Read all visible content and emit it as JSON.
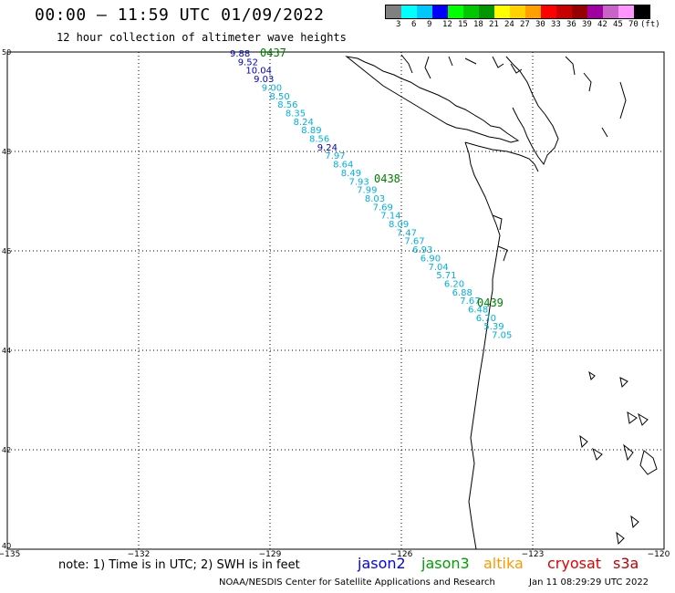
{
  "title": "00:00 – 11:59 UTC 01/09/2022",
  "subtitle": "12 hour collection of altimeter wave heights",
  "colorbar": {
    "colors": [
      "#808080",
      "#00ffff",
      "#00c8ff",
      "#0000ff",
      "#00ff00",
      "#00c800",
      "#009600",
      "#ffff00",
      "#ffd200",
      "#ffa000",
      "#ff0000",
      "#c80000",
      "#960000",
      "#a000a0",
      "#c864c8",
      "#ff96ff",
      "#000000"
    ],
    "labels": [
      "3",
      "6",
      "9",
      "12",
      "15",
      "18",
      "21",
      "24",
      "27",
      "30",
      "33",
      "36",
      "39",
      "42",
      "45",
      "70"
    ],
    "unit": "(ft)"
  },
  "axes": {
    "lon_ticks": [
      "−135",
      "−132",
      "−129",
      "−126",
      "−123",
      "−120"
    ],
    "lat_ticks": [
      "50",
      "48",
      "46",
      "44",
      "42",
      "40"
    ],
    "lon_range": [
      -135,
      -120
    ],
    "lat_range": [
      40,
      50
    ]
  },
  "tracks": [
    {
      "time_label": "0437",
      "label_color": "#008000"
    },
    {
      "time_label": "0438",
      "label_color": "#008000"
    },
    {
      "time_label": "0439",
      "label_color": "#008000"
    }
  ],
  "swh_points": [
    {
      "text": "9.88",
      "color": "#0000c0"
    },
    {
      "text": "9.52",
      "color": "#0000c0"
    },
    {
      "text": "10.04",
      "color": "#0000c0"
    },
    {
      "text": "9.03",
      "color": "#0000c0"
    },
    {
      "text": "9.00",
      "color": "#00b0e0"
    },
    {
      "text": "8.50",
      "color": "#00b0e0"
    },
    {
      "text": "8.56",
      "color": "#00b0e0"
    },
    {
      "text": "8.35",
      "color": "#00b0e0"
    },
    {
      "text": "8.24",
      "color": "#00b0e0"
    },
    {
      "text": "8.89",
      "color": "#00b0e0"
    },
    {
      "text": "8.56",
      "color": "#00b0e0"
    },
    {
      "text": "9.24",
      "color": "#0000c0"
    },
    {
      "text": "7.97",
      "color": "#00b0e0"
    },
    {
      "text": "8.64",
      "color": "#00b0e0"
    },
    {
      "text": "8.49",
      "color": "#00b0e0"
    },
    {
      "text": "7.93",
      "color": "#00b0e0"
    },
    {
      "text": "7.99",
      "color": "#00b0e0"
    },
    {
      "text": "8.03",
      "color": "#00b0e0"
    },
    {
      "text": "7.69",
      "color": "#00b0e0"
    },
    {
      "text": "7.14",
      "color": "#00b0e0"
    },
    {
      "text": "8.09",
      "color": "#00b0e0"
    },
    {
      "text": "7.47",
      "color": "#00b0e0"
    },
    {
      "text": "7.67",
      "color": "#00b0e0"
    },
    {
      "text": "6.93",
      "color": "#00b0e0"
    },
    {
      "text": "6.90",
      "color": "#00b0e0"
    },
    {
      "text": "7.04",
      "color": "#00b0e0"
    },
    {
      "text": "5.71",
      "color": "#00b0e0"
    },
    {
      "text": "6.20",
      "color": "#00b0e0"
    },
    {
      "text": "6.88",
      "color": "#00b0e0"
    },
    {
      "text": "7.67",
      "color": "#00b0e0"
    },
    {
      "text": "6.48",
      "color": "#00b0e0"
    },
    {
      "text": "6.70",
      "color": "#00b0e0"
    },
    {
      "text": "5.39",
      "color": "#00b0e0"
    },
    {
      "text": "7.05",
      "color": "#00b0e0"
    }
  ],
  "note": "note: 1) Time is in UTC; 2) SWH is in feet",
  "satellites": [
    {
      "name": "jason2",
      "color": "#0000ff"
    },
    {
      "name": "jason3",
      "color": "#00a000"
    },
    {
      "name": "altika",
      "color": "#ff9900"
    },
    {
      "name": "cryosat",
      "color": "#e00000"
    },
    {
      "name": "s3a",
      "color": "#c00000"
    }
  ],
  "footer_left": "NOAA/NESDIS Center for Satellite Applications and Research",
  "footer_right": "Jan 11 08:29:29 UTC 2022"
}
